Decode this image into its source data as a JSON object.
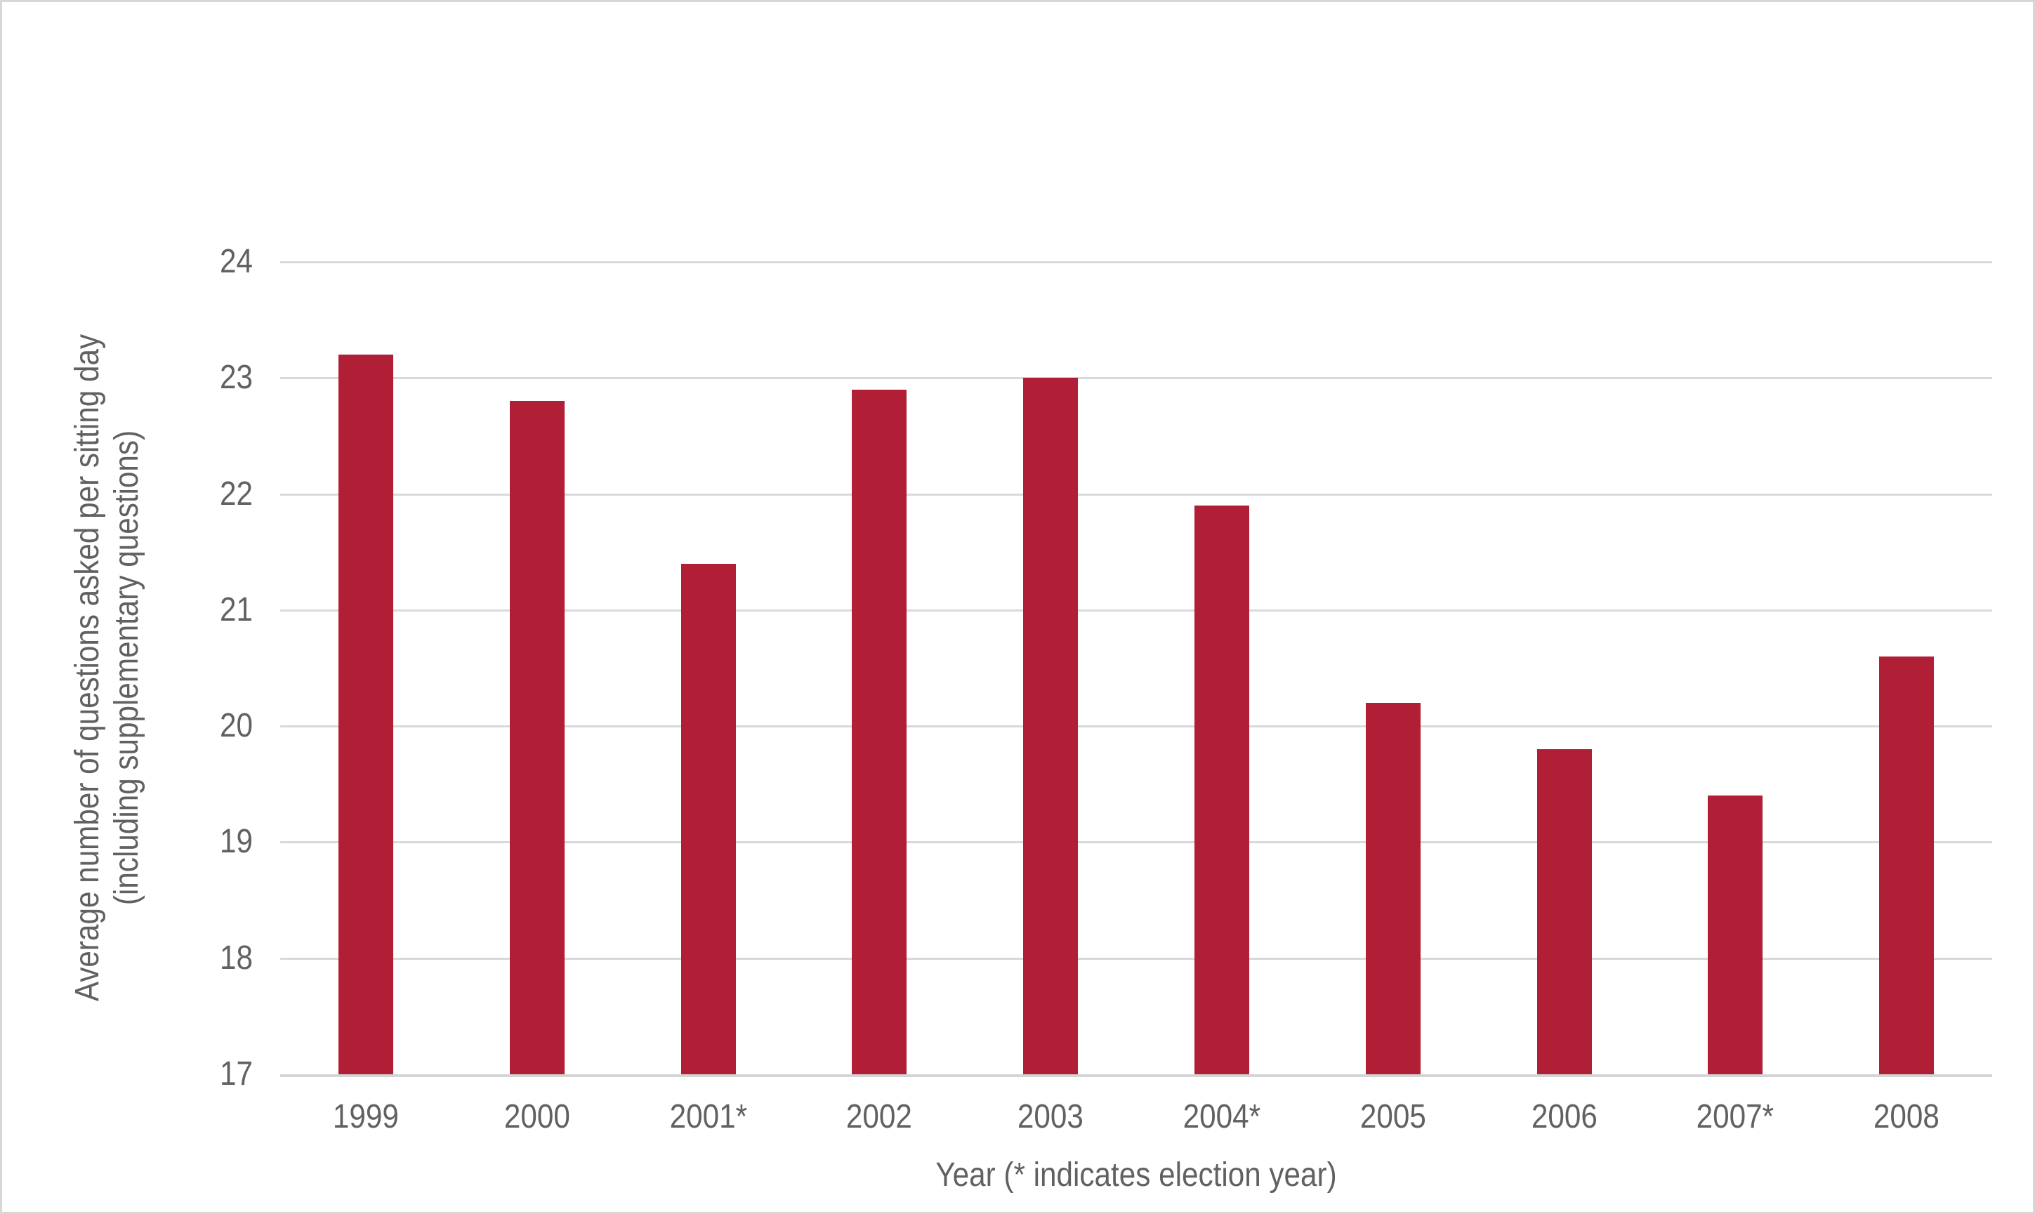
{
  "chart_data": {
    "type": "bar",
    "categories": [
      "1999",
      "2000",
      "2001*",
      "2002",
      "2003",
      "2004*",
      "2005",
      "2006",
      "2007*",
      "2008"
    ],
    "values": [
      23.2,
      22.8,
      21.4,
      22.9,
      23.0,
      21.9,
      20.2,
      19.8,
      19.4,
      20.6
    ],
    "title": "",
    "xlabel": "Year (* indicates election year)",
    "ylabel_line1": "Average number of questions asked per sitting day",
    "ylabel_line2": "(including supplementary questions)",
    "ylim": [
      17,
      24
    ],
    "ytick_step": 1,
    "yticks": [
      17,
      18,
      19,
      20,
      21,
      22,
      23,
      24
    ],
    "grid": "horizontal gridlines at each integer, baseline thicker",
    "legend_position": "none",
    "colors": {
      "bar": "#b01f36",
      "gridline": "#d9d9d9",
      "axis_line": "#d4d4d4",
      "text": "#616161",
      "canvas_border": "#d7d7d7",
      "background": "#ffffff"
    }
  }
}
